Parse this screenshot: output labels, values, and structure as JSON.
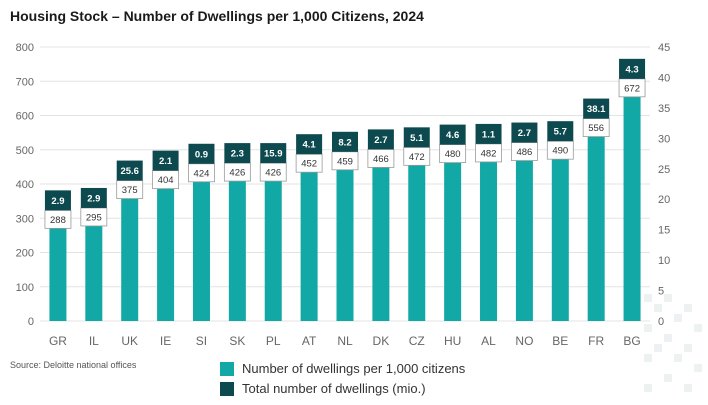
{
  "title": "Housing Stock – Number of Dwellings per 1,000 Citizens, 2024",
  "source": "Source: Deloitte national offices",
  "colors": {
    "dwellings_per_1000": "#12A8A6",
    "total_dwellings": "#0C4A4F",
    "grid": "#e3e3e3",
    "axis_text": "#666666"
  },
  "chart_data": {
    "type": "bar",
    "categories": [
      "GR",
      "IL",
      "UK",
      "IE",
      "SI",
      "SK",
      "PL",
      "AT",
      "NL",
      "DK",
      "CZ",
      "HU",
      "AL",
      "NO",
      "BE",
      "FR",
      "BG"
    ],
    "series": [
      {
        "name": "Number of dwellings per 1,000 citizens",
        "axis": "left",
        "values": [
          288,
          295,
          375,
          404,
          424,
          426,
          426,
          452,
          459,
          466,
          472,
          480,
          482,
          486,
          490,
          556,
          672
        ]
      },
      {
        "name": "Total number of dwellings (mio.)",
        "axis": "right",
        "values": [
          2.9,
          2.9,
          25.6,
          2.1,
          0.9,
          2.3,
          15.9,
          4.1,
          8.2,
          2.7,
          5.1,
          4.6,
          1.1,
          2.7,
          5.7,
          38.1,
          4.3
        ]
      }
    ],
    "ylim_left": [
      0,
      800
    ],
    "yticks_left": [
      0,
      100,
      200,
      300,
      400,
      500,
      600,
      700,
      800
    ],
    "ylim_right": [
      0,
      45
    ],
    "yticks_right": [
      0,
      5,
      10,
      15,
      20,
      25,
      30,
      35,
      40,
      45
    ],
    "grid": true,
    "legend_position": "bottom"
  }
}
